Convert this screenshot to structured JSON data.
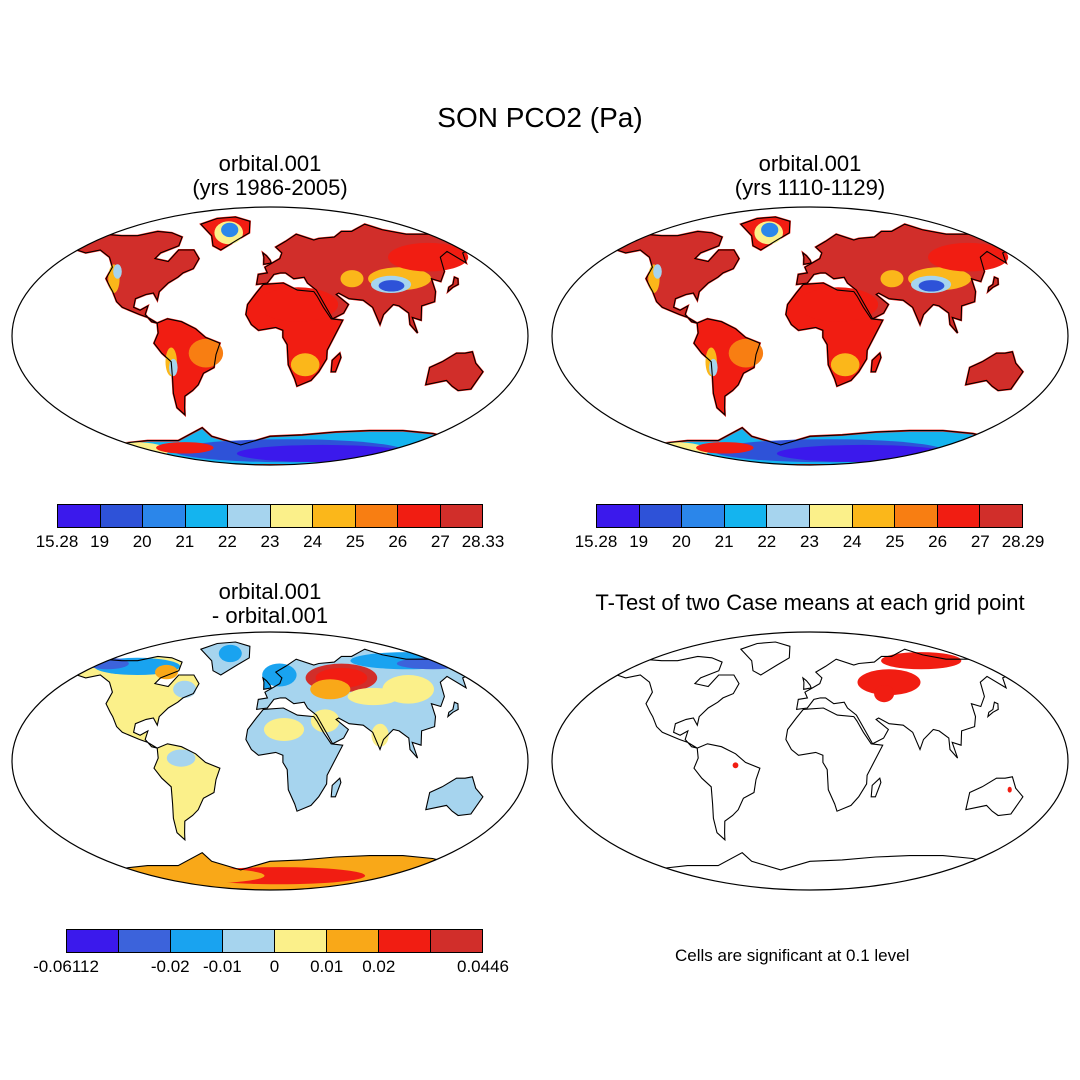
{
  "figure": {
    "title": "SON PCO2 (Pa)",
    "note": "Cells are significant at 0.1 level"
  },
  "panels": [
    {
      "title_lines": [
        "orbital.001",
        "(yrs 1986-2005)"
      ],
      "colorbar": {
        "colors": [
          "#3b19ec",
          "#2e52d8",
          "#2b86ea",
          "#14b4ef",
          "#a6d4ee",
          "#fbf08a",
          "#fbb71a",
          "#f87e12",
          "#f11d12",
          "#d12e2a"
        ],
        "labels": [
          "15.28",
          "19",
          "20",
          "21",
          "22",
          "23",
          "24",
          "25",
          "26",
          "27",
          "28.33"
        ]
      }
    },
    {
      "title_lines": [
        "orbital.001",
        "(yrs 1110-1129)"
      ],
      "colorbar": {
        "colors": [
          "#3b19ec",
          "#2e52d8",
          "#2b86ea",
          "#14b4ef",
          "#a6d4ee",
          "#fbf08a",
          "#fbb71a",
          "#f87e12",
          "#f11d12",
          "#d12e2a"
        ],
        "labels": [
          "15.28",
          "19",
          "20",
          "21",
          "22",
          "23",
          "24",
          "25",
          "26",
          "27",
          "28.29"
        ]
      }
    },
    {
      "title_lines": [
        "orbital.001",
        "- orbital.001"
      ],
      "colorbar": {
        "colors": [
          "#3b19ec",
          "#3c63db",
          "#19a3f0",
          "#a6d4ee",
          "#fbf08a",
          "#f9a818",
          "#f11d12",
          "#d12e2a"
        ],
        "labels": [
          "-0.06112",
          "",
          "-0.02",
          "-0.01",
          "0",
          "0.01",
          "0.02",
          "",
          "0.0446"
        ]
      }
    },
    {
      "title_lines": [
        "T-Test of two Case means at each grid point"
      ]
    }
  ]
}
